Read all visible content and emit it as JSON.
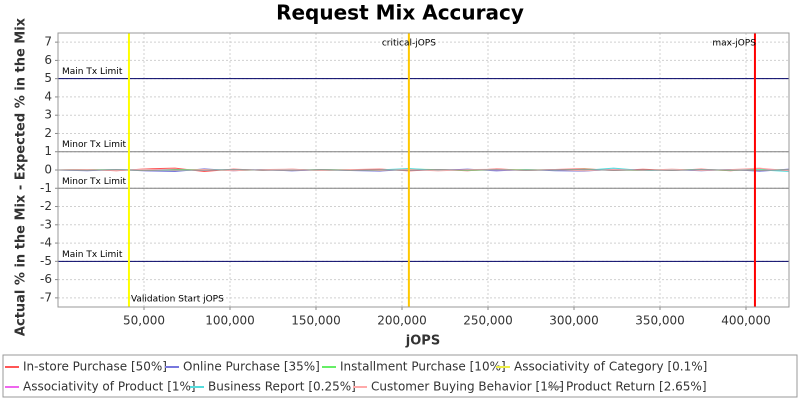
{
  "chart_data": {
    "type": "line",
    "title": "Request Mix Accuracy",
    "x_label": "jOPS",
    "y_label": "Actual % in the Mix - Expected % in the Mix",
    "xlim": [
      0,
      425000
    ],
    "ylim": [
      -7.5,
      7.5
    ],
    "xticks": [
      {
        "value": 50000,
        "label": "50,000"
      },
      {
        "value": 100000,
        "label": "100,000"
      },
      {
        "value": 150000,
        "label": "150,000"
      },
      {
        "value": 200000,
        "label": "200,000"
      },
      {
        "value": 250000,
        "label": "250,000"
      },
      {
        "value": 300000,
        "label": "300,000"
      },
      {
        "value": 350000,
        "label": "350,000"
      },
      {
        "value": 400000,
        "label": "400,000"
      }
    ],
    "yticks": [
      -7,
      -6,
      -5,
      -4,
      -3,
      -2,
      -1,
      0,
      1,
      2,
      3,
      4,
      5,
      6,
      7
    ],
    "grid": true,
    "legend": "bottom",
    "hlines": [
      {
        "value": 5,
        "label": "Main Tx Limit",
        "color": "#000066"
      },
      {
        "value": 1,
        "label": "Minor Tx Limit",
        "color": "#808080"
      },
      {
        "value": -1,
        "label": "Minor Tx Limit",
        "color": "#808080"
      },
      {
        "value": -5,
        "label": "Main Tx Limit",
        "color": "#000066"
      }
    ],
    "vlines": [
      {
        "value": 41250,
        "label": "Validation Start jOPS",
        "color": "#ffff00"
      },
      {
        "value": 204000,
        "label": "critical-jOPS",
        "color": "#ffc800"
      },
      {
        "value": 405200,
        "label": "max-jOPS",
        "color": "#ff0000"
      }
    ],
    "x": [
      0,
      17000,
      34000,
      51000,
      68000,
      85000,
      102000,
      119000,
      136000,
      153000,
      170000,
      187000,
      204000,
      221000,
      238000,
      255000,
      272000,
      289000,
      306000,
      323000,
      340000,
      357000,
      374000,
      391000,
      408000,
      425000
    ],
    "series": [
      {
        "name": "In-store Purchase [50%]",
        "color": "#ff5555",
        "values": [
          0,
          0.03,
          -0.04,
          0.06,
          0.1,
          -0.08,
          0.05,
          -0.02,
          0.04,
          -0.03,
          0.02,
          0.05,
          -0.05,
          0.03,
          -0.04,
          0.06,
          -0.02,
          0.03,
          0.07,
          -0.03,
          0.04,
          -0.02,
          0.05,
          -0.04,
          0.08,
          -0.06
        ]
      },
      {
        "name": "Online Purchase [35%]",
        "color": "#7777dd",
        "values": [
          0,
          -0.04,
          0.03,
          -0.05,
          -0.08,
          0.06,
          -0.04,
          0.03,
          -0.05,
          0.02,
          -0.03,
          -0.06,
          0.04,
          -0.03,
          0.05,
          -0.05,
          0.03,
          -0.04,
          -0.06,
          0.04,
          -0.03,
          0.02,
          -0.04,
          0.03,
          -0.07,
          0.05
        ]
      },
      {
        "name": "Installment Purchase [10%]",
        "color": "#66ee66",
        "values": [
          0,
          0.02,
          0.01,
          -0.02,
          0.03,
          0.02,
          -0.03,
          0.01,
          -0.02,
          0.03,
          0.01,
          -0.02,
          0.05,
          0.02,
          -0.03,
          0.01,
          0.02,
          -0.01,
          0.04,
          0.01,
          -0.02,
          0.03,
          0.01,
          -0.02,
          0.02,
          0.01
        ]
      },
      {
        "name": "Associativity of Category [0.1%]",
        "color": "#eeee44",
        "values": [
          0,
          0,
          0.01,
          0,
          -0.01,
          0,
          0.01,
          0,
          0,
          -0.01,
          0,
          0.01,
          0,
          0,
          -0.01,
          0,
          0.01,
          0,
          0,
          0,
          -0.01,
          0,
          0.01,
          0,
          0,
          0
        ]
      },
      {
        "name": "Associativity of Product [1%]",
        "color": "#ee66ee",
        "values": [
          0,
          0.01,
          -0.01,
          0.02,
          0,
          -0.01,
          0.01,
          0,
          -0.02,
          0.01,
          0,
          0.01,
          -0.01,
          0,
          0.02,
          -0.01,
          0,
          0.01,
          -0.01,
          0.02,
          0,
          -0.01,
          0.01,
          0,
          -0.01,
          0.01
        ]
      },
      {
        "name": "Business Report [0.25%]",
        "color": "#55dddd",
        "values": [
          0,
          -0.01,
          0.02,
          0,
          -0.03,
          0.01,
          0.02,
          -0.01,
          0.03,
          -0.02,
          0.01,
          0,
          0.08,
          -0.02,
          0.01,
          0.02,
          -0.01,
          0.01,
          -0.02,
          0.1,
          -0.03,
          0.01,
          0.02,
          -0.01,
          0.01,
          -0.08
        ]
      },
      {
        "name": "Customer Buying Behavior [1%]",
        "color": "#ffaaaa",
        "values": [
          0,
          0.02,
          -0.03,
          0.04,
          -0.02,
          0.03,
          -0.04,
          0.02,
          0.05,
          -0.03,
          0.02,
          -0.02,
          0.03,
          -0.05,
          0.02,
          0.04,
          -0.03,
          0.02,
          -0.04,
          0.03,
          -0.02,
          0.05,
          -0.03,
          0.02,
          0.1,
          -0.04
        ]
      },
      {
        "name": "Product Return [2.65%]",
        "color": "#999999",
        "values": [
          0,
          -0.02,
          0.02,
          -0.03,
          0.01,
          -0.02,
          0.03,
          -0.01,
          -0.02,
          0.02,
          -0.03,
          0.01,
          -0.02,
          0.03,
          -0.01,
          0.02,
          -0.02,
          0.01,
          0.03,
          -0.02,
          0.01,
          -0.03,
          0.02,
          -0.01,
          -0.03,
          0.02
        ]
      }
    ]
  }
}
